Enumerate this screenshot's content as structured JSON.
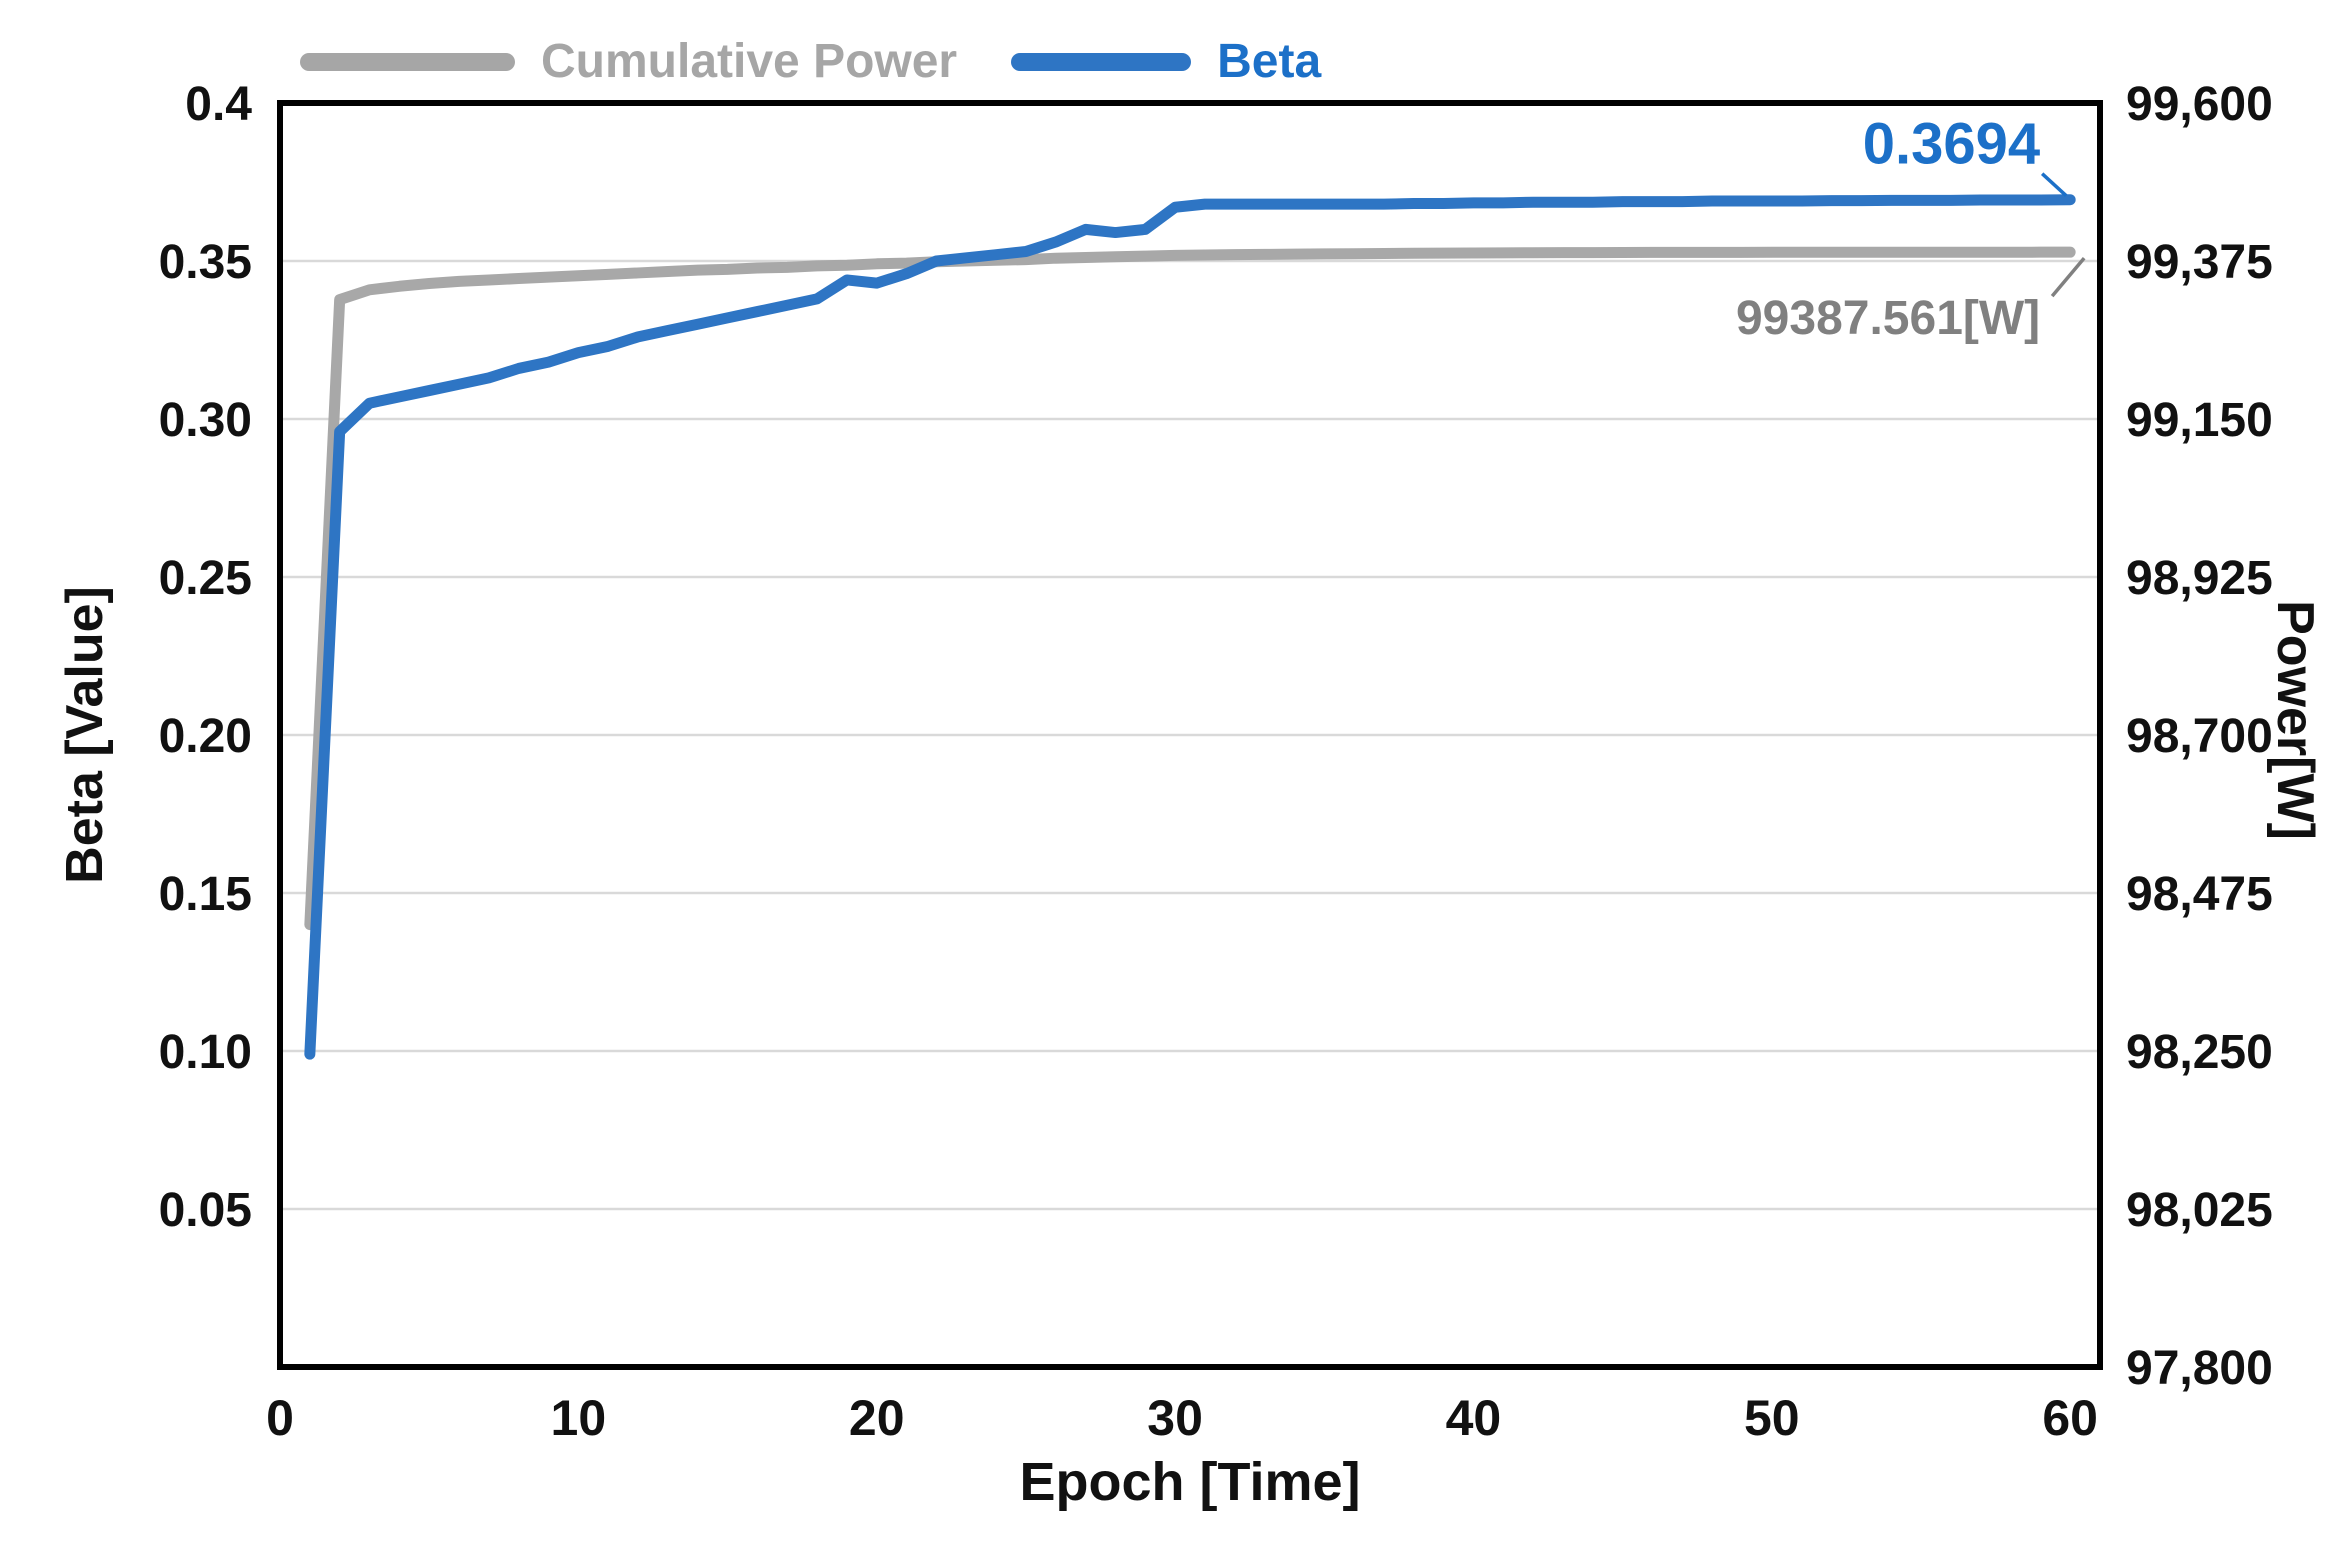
{
  "chart_data": {
    "type": "line",
    "title": "",
    "xlabel": "Epoch [Time]",
    "ylabel_left": "Beta [Value]",
    "ylabel_right": "Power[W]",
    "grid": "horizontal",
    "legend_position": "top",
    "colors": {
      "beta_line": "#2E75C4",
      "power_line": "#A8A8A8",
      "grid": "#D9D9D9",
      "border": "#000000",
      "beta_text": "#1C70C8",
      "power_text": "#808080",
      "tick_text": "#111111"
    },
    "x_axis": {
      "min": 0,
      "max": 61,
      "ticks": [
        {
          "v": 0,
          "label": "0"
        },
        {
          "v": 10,
          "label": "10"
        },
        {
          "v": 20,
          "label": "20"
        },
        {
          "v": 30,
          "label": "30"
        },
        {
          "v": 40,
          "label": "40"
        },
        {
          "v": 50,
          "label": "50"
        },
        {
          "v": 60,
          "label": "60"
        }
      ]
    },
    "left_axis": {
      "min": 0,
      "max": 0.4,
      "ticks": [
        {
          "v": 0.4,
          "label": "0.4"
        },
        {
          "v": 0.35,
          "label": "0.35"
        },
        {
          "v": 0.3,
          "label": "0.30"
        },
        {
          "v": 0.25,
          "label": "0.25"
        },
        {
          "v": 0.2,
          "label": "0.20"
        },
        {
          "v": 0.15,
          "label": "0.15"
        },
        {
          "v": 0.1,
          "label": "0.10"
        },
        {
          "v": 0.05,
          "label": "0.05"
        }
      ]
    },
    "right_axis": {
      "min": 97800,
      "max": 99600,
      "ticks": [
        {
          "v": 99600,
          "label": "99,600"
        },
        {
          "v": 99375,
          "label": "99,375"
        },
        {
          "v": 99150,
          "label": "99,150"
        },
        {
          "v": 98925,
          "label": "98,925"
        },
        {
          "v": 98700,
          "label": "98,700"
        },
        {
          "v": 98475,
          "label": "98,475"
        },
        {
          "v": 98250,
          "label": "98,250"
        },
        {
          "v": 98025,
          "label": "98,025"
        },
        {
          "v": 97800,
          "label": "97,800"
        }
      ]
    },
    "series": [
      {
        "name": "Cumulative Power",
        "axis": "right",
        "color": "#A8A8A8",
        "x": [
          1,
          2,
          3,
          4,
          5,
          6,
          7,
          8,
          9,
          10,
          11,
          12,
          13,
          14,
          15,
          16,
          17,
          18,
          19,
          20,
          21,
          22,
          23,
          24,
          25,
          26,
          27,
          28,
          29,
          30,
          31,
          32,
          33,
          34,
          35,
          36,
          37,
          38,
          39,
          40,
          41,
          42,
          43,
          44,
          45,
          46,
          47,
          48,
          49,
          50,
          51,
          52,
          53,
          54,
          55,
          56,
          57,
          58,
          59,
          60
        ],
        "values": [
          98430,
          99320,
          99334,
          99339,
          99343,
          99346,
          99348,
          99350,
          99352,
          99354,
          99356,
          99358,
          99360,
          99362,
          99363,
          99365,
          99366,
          99368,
          99369,
          99371,
          99372,
          99374,
          99375,
          99376,
          99377,
          99379,
          99380,
          99381,
          99382,
          99383,
          99383.5,
          99384,
          99384.4,
          99384.8,
          99385.1,
          99385.4,
          99385.7,
          99386,
          99386.2,
          99386.4,
          99386.6,
          99386.8,
          99386.9,
          99387,
          99387.1,
          99387.2,
          99387.25,
          99387.3,
          99387.35,
          99387.4,
          99387.43,
          99387.46,
          99387.48,
          99387.5,
          99387.51,
          99387.52,
          99387.53,
          99387.54,
          99387.55,
          99387.561
        ]
      },
      {
        "name": "Beta",
        "axis": "left",
        "color": "#2E75C4",
        "x": [
          1,
          2,
          3,
          4,
          5,
          6,
          7,
          8,
          9,
          10,
          11,
          12,
          13,
          14,
          15,
          16,
          17,
          18,
          19,
          20,
          21,
          22,
          23,
          24,
          25,
          26,
          27,
          28,
          29,
          30,
          31,
          32,
          33,
          34,
          35,
          36,
          37,
          38,
          39,
          40,
          41,
          42,
          43,
          44,
          45,
          46,
          47,
          48,
          49,
          50,
          51,
          52,
          53,
          54,
          55,
          56,
          57,
          58,
          59,
          60
        ],
        "values": [
          0.099,
          0.296,
          0.305,
          0.307,
          0.309,
          0.311,
          0.313,
          0.316,
          0.318,
          0.321,
          0.323,
          0.326,
          0.328,
          0.33,
          0.332,
          0.334,
          0.336,
          0.338,
          0.344,
          0.343,
          0.346,
          0.35,
          0.351,
          0.352,
          0.353,
          0.356,
          0.36,
          0.359,
          0.36,
          0.367,
          0.368,
          0.368,
          0.368,
          0.368,
          0.368,
          0.368,
          0.368,
          0.3682,
          0.3682,
          0.3684,
          0.3684,
          0.3686,
          0.3686,
          0.3686,
          0.3688,
          0.3688,
          0.3688,
          0.369,
          0.369,
          0.369,
          0.369,
          0.3691,
          0.3691,
          0.3692,
          0.3692,
          0.3692,
          0.3693,
          0.3693,
          0.3693,
          0.3694
        ]
      }
    ],
    "annotations": [
      {
        "text": "0.3694",
        "series": "Beta",
        "color": "#1C70C8"
      },
      {
        "text": "99387.561[W]",
        "series": "Cumulative Power",
        "color": "#808080"
      }
    ]
  }
}
